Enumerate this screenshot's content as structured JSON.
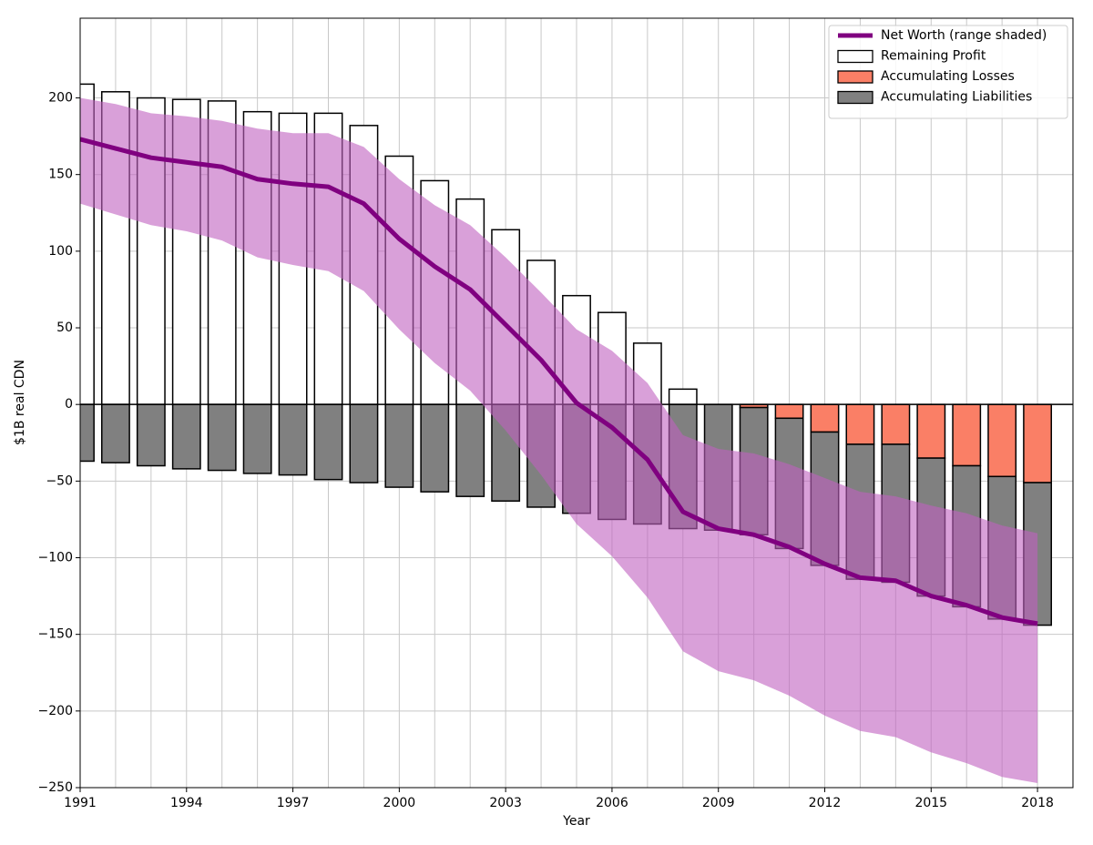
{
  "chart_data": {
    "type": "bar",
    "x": [
      1991,
      1992,
      1993,
      1994,
      1995,
      1996,
      1997,
      1998,
      1999,
      2000,
      2001,
      2002,
      2003,
      2004,
      2005,
      2006,
      2007,
      2008,
      2009,
      2010,
      2011,
      2012,
      2013,
      2014,
      2015,
      2016,
      2017,
      2018
    ],
    "series": [
      {
        "name": "Net Worth (range shaded)",
        "type": "line",
        "color": "#800080",
        "band_color": "#c060c0",
        "values": [
          173,
          167,
          161,
          158,
          155,
          147,
          144,
          142,
          131,
          108,
          90,
          75,
          52,
          29,
          1,
          -15,
          -36,
          -70,
          -81,
          -85,
          -93,
          -104,
          -113,
          -115,
          -125,
          -131,
          -139,
          -143
        ],
        "range_lower": [
          131,
          124,
          117,
          113,
          107,
          96,
          91,
          87,
          74,
          49,
          27,
          9,
          -17,
          -46,
          -78,
          -99,
          -126,
          -161,
          -174,
          -180,
          -190,
          -203,
          -213,
          -217,
          -227,
          -234,
          -243,
          -247
        ],
        "range_upper": [
          200,
          196,
          190,
          188,
          185,
          180,
          177,
          177,
          168,
          147,
          130,
          117,
          96,
          73,
          49,
          35,
          14,
          -20,
          -29,
          -32,
          -39,
          -48,
          -57,
          -60,
          -66,
          -71,
          -79,
          -84
        ]
      },
      {
        "name": "Remaining Profit",
        "type": "bar",
        "color": "#ffffff",
        "edgecolor": "#000000",
        "values": [
          209,
          204,
          200,
          199,
          198,
          191,
          190,
          190,
          182,
          162,
          146,
          134,
          114,
          94,
          71,
          60,
          40,
          10,
          0,
          0,
          0,
          0,
          0,
          0,
          0,
          0,
          0,
          0
        ]
      },
      {
        "name": "Accumulating Losses",
        "type": "bar",
        "color": "#fa7f66",
        "edgecolor": "#000000",
        "values": [
          0,
          0,
          0,
          0,
          0,
          0,
          0,
          0,
          0,
          0,
          0,
          0,
          0,
          0,
          0,
          0,
          0,
          0,
          0,
          -2,
          -9,
          -18,
          -26,
          -26,
          -35,
          -40,
          -47,
          -51
        ]
      },
      {
        "name": "Accumulating Liabilities",
        "type": "bar",
        "color": "#808080",
        "edgecolor": "#000000",
        "values": [
          -37,
          -38,
          -40,
          -42,
          -43,
          -45,
          -46,
          -49,
          -51,
          -54,
          -57,
          -60,
          -63,
          -67,
          -71,
          -75,
          -78,
          -81,
          -82,
          -83,
          -85,
          -87,
          -88,
          -90,
          -90,
          -92,
          -93,
          -93
        ]
      }
    ],
    "xlabel": "Year",
    "ylabel": "$1B real CDN",
    "xlim": [
      1991,
      2019
    ],
    "ylim": [
      -250,
      252
    ],
    "xticks": [
      1991,
      1994,
      1997,
      2000,
      2003,
      2006,
      2009,
      2012,
      2015,
      2018
    ],
    "x_minor_ticks": [
      1992,
      1993,
      1995,
      1996,
      1998,
      1999,
      2001,
      2002,
      2004,
      2005,
      2007,
      2008,
      2010,
      2011,
      2013,
      2014,
      2016,
      2017
    ],
    "yticks": [
      {
        "value": -250,
        "label": "−250"
      },
      {
        "value": -200,
        "label": "−200"
      },
      {
        "value": -150,
        "label": "−150"
      },
      {
        "value": -100,
        "label": "−100"
      },
      {
        "value": -50,
        "label": "−50"
      },
      0,
      50,
      100,
      150,
      200
    ],
    "hline": 0,
    "grid": true,
    "legend": "upper right"
  }
}
